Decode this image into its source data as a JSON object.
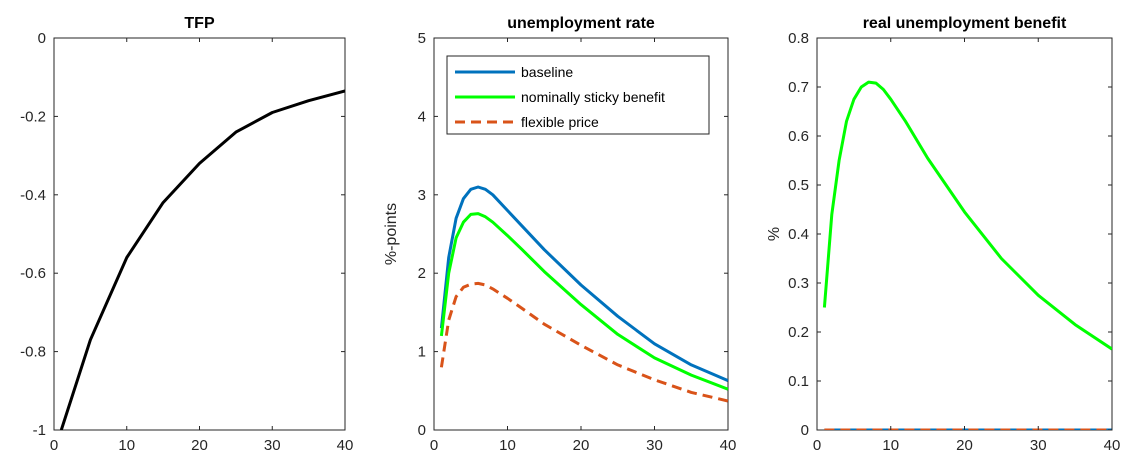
{
  "chart_data": [
    {
      "type": "line",
      "title": "TFP",
      "xlabel": "",
      "ylabel": "",
      "xlim": [
        0,
        40
      ],
      "ylim": [
        -1,
        0
      ],
      "xticks": [
        0,
        10,
        20,
        30,
        40
      ],
      "yticks": [
        -1,
        -0.8,
        -0.6,
        -0.4,
        -0.2,
        0
      ],
      "ytick_labels": [
        "-1",
        "-0.8",
        "-0.6",
        "-0.4",
        "-0.2",
        "0"
      ],
      "grid": false,
      "series": [
        {
          "color": "#000000",
          "dash": "solid",
          "x": [
            1,
            5,
            10,
            15,
            20,
            25,
            30,
            35,
            40
          ],
          "y": [
            -1.0,
            -0.77,
            -0.56,
            -0.42,
            -0.32,
            -0.24,
            -0.19,
            -0.16,
            -0.135
          ]
        }
      ]
    },
    {
      "type": "line",
      "title": "unemployment rate",
      "xlabel": "",
      "ylabel": "%-points",
      "xlim": [
        0,
        40
      ],
      "ylim": [
        0,
        5
      ],
      "xticks": [
        0,
        10,
        20,
        30,
        40
      ],
      "yticks": [
        0,
        1,
        2,
        3,
        4,
        5
      ],
      "ytick_labels": [
        "0",
        "1",
        "2",
        "3",
        "4",
        "5"
      ],
      "grid": false,
      "legend": "top-left",
      "series": [
        {
          "name": "baseline",
          "color": "#0072BD",
          "dash": "solid",
          "x": [
            1,
            2,
            3,
            4,
            5,
            6,
            7,
            8,
            10,
            12,
            15,
            20,
            25,
            30,
            35,
            40
          ],
          "y": [
            1.3,
            2.2,
            2.7,
            2.95,
            3.07,
            3.1,
            3.07,
            3.0,
            2.8,
            2.6,
            2.3,
            1.85,
            1.45,
            1.1,
            0.83,
            0.63
          ]
        },
        {
          "name": "nominally sticky benefit",
          "color": "#00FF00",
          "dash": "solid",
          "x": [
            1,
            2,
            3,
            4,
            5,
            6,
            7,
            8,
            10,
            12,
            15,
            20,
            25,
            30,
            35,
            40
          ],
          "y": [
            1.2,
            2.0,
            2.45,
            2.65,
            2.75,
            2.76,
            2.72,
            2.65,
            2.48,
            2.3,
            2.02,
            1.6,
            1.22,
            0.92,
            0.7,
            0.52
          ]
        },
        {
          "name": "flexible price",
          "color": "#D95319",
          "dash": "dashed",
          "x": [
            1,
            2,
            3,
            4,
            5,
            6,
            7,
            8,
            10,
            12,
            15,
            20,
            25,
            30,
            35,
            40
          ],
          "y": [
            0.8,
            1.4,
            1.7,
            1.82,
            1.86,
            1.87,
            1.85,
            1.8,
            1.68,
            1.55,
            1.35,
            1.08,
            0.83,
            0.64,
            0.48,
            0.37
          ]
        }
      ]
    },
    {
      "type": "line",
      "title": "real unemployment benefit",
      "xlabel": "",
      "ylabel": "%",
      "xlim": [
        0,
        40
      ],
      "ylim": [
        0,
        0.8
      ],
      "xticks": [
        0,
        10,
        20,
        30,
        40
      ],
      "yticks": [
        0,
        0.1,
        0.2,
        0.3,
        0.4,
        0.5,
        0.6,
        0.7,
        0.8
      ],
      "ytick_labels": [
        "0",
        "0.1",
        "0.2",
        "0.3",
        "0.4",
        "0.5",
        "0.6",
        "0.7",
        "0.8"
      ],
      "grid": false,
      "series": [
        {
          "color": "#0072BD",
          "dash": "solid",
          "x": [
            1,
            40
          ],
          "y": [
            0,
            0
          ]
        },
        {
          "color": "#D95319",
          "dash": "dashed",
          "x": [
            1,
            40
          ],
          "y": [
            0,
            0
          ]
        },
        {
          "color": "#00FF00",
          "dash": "solid",
          "x": [
            1,
            2,
            3,
            4,
            5,
            6,
            7,
            8,
            9,
            10,
            12,
            15,
            20,
            25,
            30,
            35,
            40
          ],
          "y": [
            0.25,
            0.44,
            0.55,
            0.63,
            0.675,
            0.7,
            0.71,
            0.708,
            0.695,
            0.675,
            0.63,
            0.555,
            0.445,
            0.35,
            0.275,
            0.215,
            0.165
          ]
        }
      ]
    }
  ]
}
